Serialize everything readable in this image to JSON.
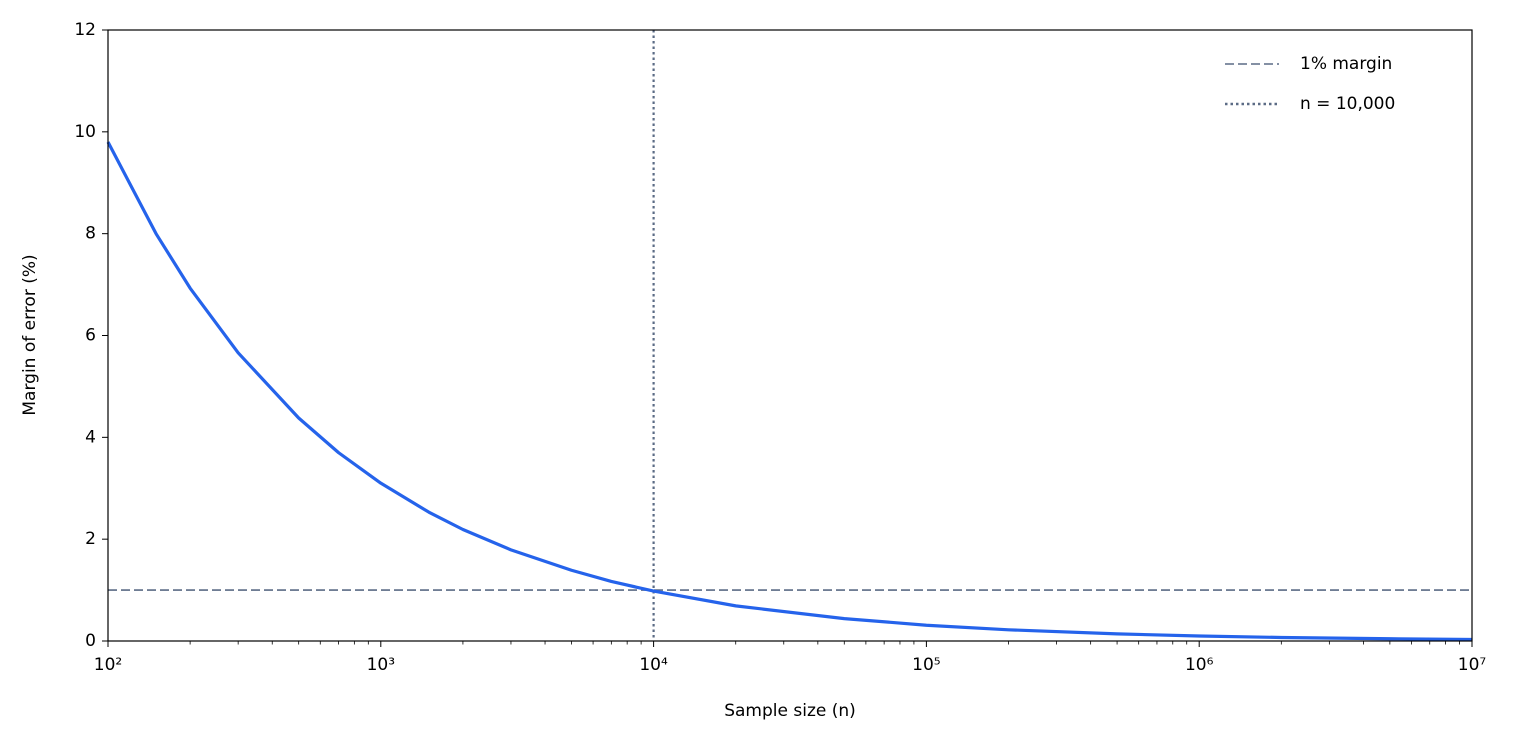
{
  "chart_data": {
    "type": "line",
    "xlabel": "Sample size (n)",
    "ylabel": "Margin of error (%)",
    "x": [
      100,
      150,
      200,
      300,
      500,
      700,
      1000,
      1500,
      2000,
      3000,
      5000,
      7000,
      10000,
      20000,
      50000,
      100000,
      200000,
      500000,
      1000000,
      2000000,
      5000000,
      10000000
    ],
    "values": [
      9.8,
      8.0,
      6.93,
      5.66,
      4.38,
      3.7,
      3.1,
      2.53,
      2.19,
      1.79,
      1.39,
      1.17,
      0.98,
      0.69,
      0.44,
      0.31,
      0.22,
      0.14,
      0.098,
      0.069,
      0.044,
      0.031
    ],
    "color": "#2563eb",
    "reference_lines": [
      {
        "name": "1% margin",
        "axis": "y",
        "value": 1,
        "style": "dashed",
        "color": "#5b6b85"
      },
      {
        "name": "n = 10,000",
        "axis": "x",
        "value": 10000,
        "style": "dotted",
        "color": "#5b6b85"
      }
    ],
    "xscale": "log",
    "minor_ticks": true,
    "xlim": [
      100,
      10000000
    ],
    "xticks": [
      {
        "value": 100,
        "label": "10²"
      },
      {
        "value": 1000,
        "label": "10³"
      },
      {
        "value": 10000,
        "label": "10⁴"
      },
      {
        "value": 100000,
        "label": "10⁵"
      },
      {
        "value": 1000000,
        "label": "10⁶"
      },
      {
        "value": 10000000,
        "label": "10⁷"
      }
    ],
    "ylim": [
      0,
      12
    ],
    "yticks": [
      0,
      2,
      4,
      6,
      8,
      10,
      12
    ],
    "legend": "upper right"
  }
}
